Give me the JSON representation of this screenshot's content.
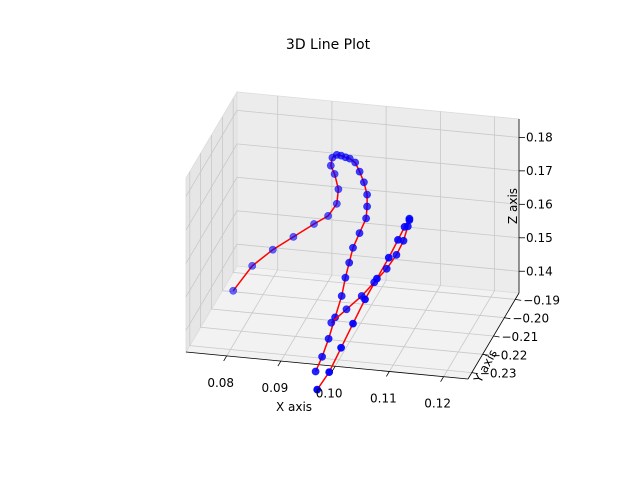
{
  "chart_data": {
    "type": "line",
    "title": "3D Line Plot",
    "xlabel": "X axis",
    "ylabel": "Y axis",
    "zlabel": "Z axis",
    "x_ticks": [
      "0.08",
      "0.09",
      "0.10",
      "0.11",
      "0.12"
    ],
    "y_ticks": [
      "−0.19",
      "−0.20",
      "−0.21",
      "−0.22",
      "−0.23"
    ],
    "z_ticks": [
      "0.14",
      "0.15",
      "0.16",
      "0.17",
      "0.18"
    ],
    "grid": true,
    "line_color": "#ff0000",
    "marker_color": "#0000ff",
    "series": [
      {
        "points": [
          [
            0.0725,
            -0.19,
            0.128
          ],
          [
            0.076,
            -0.19,
            0.136
          ],
          [
            0.08,
            -0.191,
            0.142
          ],
          [
            0.084,
            -0.192,
            0.147
          ],
          [
            0.088,
            -0.193,
            0.152
          ],
          [
            0.091,
            -0.195,
            0.156
          ],
          [
            0.093,
            -0.197,
            0.161
          ],
          [
            0.0935,
            -0.198,
            0.166
          ],
          [
            0.093,
            -0.199,
            0.171
          ],
          [
            0.0925,
            -0.2,
            0.174
          ],
          [
            0.093,
            -0.201,
            0.177
          ],
          [
            0.094,
            -0.202,
            0.1785
          ],
          [
            0.095,
            -0.203,
            0.179
          ],
          [
            0.096,
            -0.204,
            0.1792
          ],
          [
            0.097,
            -0.205,
            0.1795
          ],
          [
            0.098,
            -0.205,
            0.1785
          ],
          [
            0.099,
            -0.206,
            0.1765
          ],
          [
            0.1,
            -0.207,
            0.174
          ],
          [
            0.1008,
            -0.208,
            0.171
          ],
          [
            0.101,
            -0.209,
            0.168
          ],
          [
            0.101,
            -0.21,
            0.165
          ],
          [
            0.1,
            -0.211,
            0.161
          ],
          [
            0.099,
            -0.212,
            0.157
          ],
          [
            0.0985,
            -0.213,
            0.153
          ],
          [
            0.098,
            -0.214,
            0.149
          ],
          [
            0.0975,
            -0.215,
            0.144
          ],
          [
            0.0965,
            -0.216,
            0.138
          ],
          [
            0.0955,
            -0.217,
            0.132
          ],
          [
            0.0945,
            -0.218,
            0.127
          ],
          [
            0.0935,
            -0.219,
            0.123
          ]
        ]
      },
      {
        "points": [
          [
            0.095,
            -0.212,
            0.134
          ],
          [
            0.098,
            -0.213,
            0.139
          ],
          [
            0.101,
            -0.214,
            0.144
          ],
          [
            0.1035,
            -0.215,
            0.149
          ],
          [
            0.106,
            -0.216,
            0.154
          ],
          [
            0.108,
            -0.217,
            0.159
          ],
          [
            0.1095,
            -0.218,
            0.164
          ],
          [
            0.1105,
            -0.219,
            0.169
          ],
          [
            0.111,
            -0.22,
            0.1715
          ],
          [
            0.1112,
            -0.221,
            0.1725
          ],
          [
            0.1105,
            -0.222,
            0.1705
          ],
          [
            0.1095,
            -0.223,
            0.167
          ],
          [
            0.108,
            -0.224,
            0.162
          ],
          [
            0.106,
            -0.225,
            0.156
          ],
          [
            0.104,
            -0.226,
            0.15
          ],
          [
            0.102,
            -0.227,
            0.143
          ],
          [
            0.1,
            -0.228,
            0.136
          ],
          [
            0.098,
            -0.229,
            0.129
          ],
          [
            0.096,
            -0.23,
            0.124
          ]
        ]
      }
    ]
  }
}
